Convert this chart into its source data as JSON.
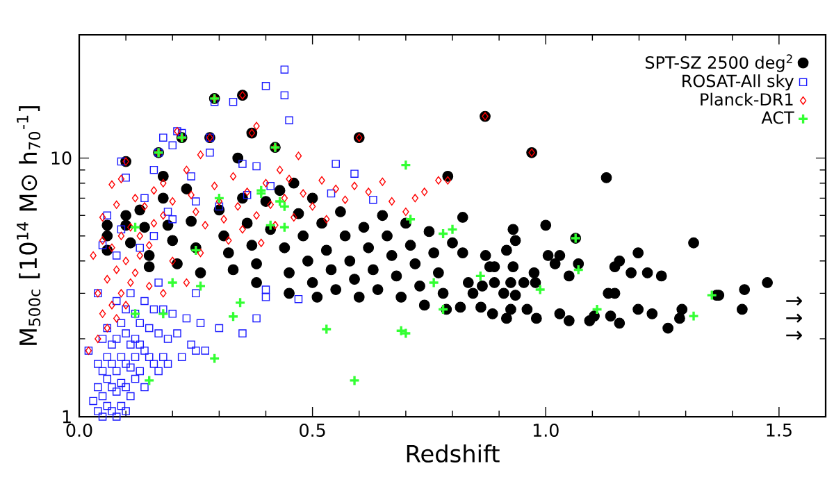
{
  "chart_data": {
    "type": "scatter",
    "xlabel": "Redshift",
    "ylabel": "M$_{500c}$ [10$^{14}$ M⊙ h$_{70}$$^{-1}$]",
    "log": "y",
    "xlim": [
      0,
      1.6
    ],
    "ylim": [
      1,
      30
    ],
    "xticks": [
      {
        "value": 0,
        "label": "0.0"
      },
      {
        "value": 0.5,
        "label": "0.5"
      },
      {
        "value": 1,
        "label": "1.0"
      },
      {
        "value": 1.5,
        "label": "1.5"
      }
    ],
    "yticks": [
      1,
      10
    ],
    "legend": "top right",
    "grid": false,
    "annotations": [
      "→",
      "→",
      "→"
    ],
    "series": [
      {
        "name": "SPT-SZ 2500 deg$^{2}$",
        "color": "#000000",
        "marker": "circle",
        "x": [
          0.06,
          0.06,
          0.06,
          0.1,
          0.1,
          0.1,
          0.11,
          0.13,
          0.14,
          0.15,
          0.15,
          0.17,
          0.18,
          0.18,
          0.19,
          0.2,
          0.21,
          0.22,
          0.23,
          0.24,
          0.25,
          0.26,
          0.28,
          0.29,
          0.3,
          0.31,
          0.32,
          0.33,
          0.34,
          0.35,
          0.35,
          0.36,
          0.37,
          0.38,
          0.38,
          0.4,
          0.41,
          0.42,
          0.43,
          0.44,
          0.45,
          0.45,
          0.46,
          0.47,
          0.48,
          0.49,
          0.5,
          0.5,
          0.51,
          0.52,
          0.53,
          0.54,
          0.55,
          0.56,
          0.57,
          0.58,
          0.59,
          0.6,
          0.6,
          0.61,
          0.62,
          0.63,
          0.64,
          0.65,
          0.66,
          0.67,
          0.68,
          0.69,
          0.7,
          0.71,
          0.72,
          0.73,
          0.74,
          0.75,
          0.76,
          0.77,
          0.78,
          0.79,
          0.8,
          0.87,
          0.97,
          0.37,
          0.822,
          1.0,
          0.93,
          0.935,
          1.064,
          1.317,
          0.822,
          0.871,
          0.916,
          1.005,
          1.03,
          1.02,
          1.07,
          1.198,
          1.158,
          1.148,
          1.183,
          1.218,
          1.248,
          1.05,
          0.975,
          0.88,
          0.89,
          0.93,
          0.834,
          0.864,
          0.89,
          0.925,
          0.953,
          0.978,
          0.844,
          0.91,
          0.935,
          1.134,
          1.148,
          1.371,
          1.426,
          1.475,
          1.421,
          1.366,
          1.292,
          1.198,
          1.228,
          1.139,
          1.104,
          1.094,
          1.158,
          1.262,
          1.287,
          1.05,
          1.03,
          0.98,
          0.96,
          0.925,
          0.886,
          0.861,
          0.817,
          0.787,
          0.916,
          1.13
        ],
        "values": [
          5.5,
          5.0,
          4.4,
          9.7,
          6.0,
          5.5,
          4.7,
          6.3,
          5.4,
          4.2,
          3.8,
          10.5,
          8.5,
          7.0,
          5.5,
          4.8,
          3.9,
          12.0,
          7.6,
          5.7,
          4.5,
          3.6,
          12.0,
          17.0,
          6.3,
          5.0,
          4.3,
          3.7,
          10.0,
          17.5,
          7.0,
          5.6,
          4.6,
          3.9,
          3.3,
          6.8,
          5.3,
          11.0,
          7.5,
          4.5,
          3.6,
          3.0,
          8.0,
          6.1,
          5.0,
          4.0,
          3.3,
          7.0,
          2.9,
          5.6,
          4.4,
          3.7,
          3.1,
          6.2,
          5.0,
          4.0,
          3.4,
          12.0,
          2.9,
          5.4,
          4.5,
          3.7,
          3.1,
          6.0,
          5.0,
          4.2,
          3.5,
          2.9,
          5.6,
          4.6,
          3.9,
          3.2,
          2.7,
          5.2,
          4.3,
          3.6,
          3.0,
          8.5,
          4.7,
          14.5,
          10.5,
          12.5,
          5.9,
          5.5,
          5.3,
          4.8,
          4.9,
          4.7,
          4.3,
          4.2,
          4.4,
          4.2,
          4.2,
          3.9,
          3.9,
          4.3,
          4.0,
          3.8,
          3.6,
          3.6,
          3.5,
          3.5,
          3.6,
          3.8,
          3.8,
          3.8,
          3.3,
          3.2,
          3.3,
          3.3,
          3.3,
          3.3,
          3.0,
          3.0,
          2.95,
          3.0,
          3.0,
          2.95,
          3.1,
          3.3,
          2.6,
          2.95,
          2.6,
          2.6,
          2.5,
          2.45,
          2.45,
          2.35,
          2.3,
          2.2,
          2.4,
          2.35,
          2.5,
          2.4,
          2.6,
          2.6,
          2.5,
          2.65,
          2.65,
          2.6,
          2.4,
          8.4
        ]
      },
      {
        "name": "ROSAT-All sky",
        "color": "#1a1aff",
        "marker": "square",
        "x": [
          0.02,
          0.03,
          0.04,
          0.05,
          0.06,
          0.07,
          0.08,
          0.09,
          0.1,
          0.04,
          0.05,
          0.06,
          0.07,
          0.08,
          0.09,
          0.1,
          0.11,
          0.12,
          0.04,
          0.05,
          0.06,
          0.07,
          0.08,
          0.09,
          0.1,
          0.11,
          0.12,
          0.13,
          0.14,
          0.05,
          0.06,
          0.07,
          0.08,
          0.09,
          0.1,
          0.11,
          0.12,
          0.13,
          0.14,
          0.15,
          0.16,
          0.17,
          0.18,
          0.19,
          0.22,
          0.25,
          0.1,
          0.12,
          0.13,
          0.15,
          0.17,
          0.19,
          0.21,
          0.24,
          0.27,
          0.08,
          0.11,
          0.14,
          0.16,
          0.18,
          0.2,
          0.23,
          0.26,
          0.3,
          0.35,
          0.38,
          0.4,
          0.47,
          0.4,
          0.17,
          0.25,
          0.04,
          0.05,
          0.08,
          0.13,
          0.16,
          0.2,
          0.25,
          0.3,
          0.06,
          0.09,
          0.14,
          0.19,
          0.41,
          0.36,
          0.44,
          0.44,
          0.4,
          0.33,
          0.29,
          0.45,
          0.21,
          0.22,
          0.18,
          0.2,
          0.28,
          0.17,
          0.28,
          0.09,
          0.16,
          0.38,
          0.35,
          0.55,
          0.59,
          0.1,
          0.24,
          0.54,
          0.63
        ],
        "values": [
          1.8,
          1.15,
          1.05,
          1.0,
          1.1,
          1.05,
          1.0,
          1.1,
          1.05,
          1.3,
          1.2,
          1.4,
          1.3,
          1.25,
          1.35,
          1.3,
          1.2,
          1.4,
          1.6,
          1.5,
          1.7,
          1.6,
          1.5,
          1.7,
          1.6,
          1.55,
          1.7,
          1.5,
          1.3,
          2.0,
          2.2,
          1.9,
          2.0,
          2.3,
          2.1,
          1.9,
          2.0,
          1.9,
          1.8,
          1.7,
          1.6,
          1.5,
          1.7,
          1.6,
          1.7,
          1.8,
          2.6,
          2.5,
          2.3,
          2.2,
          2.1,
          2.0,
          2.1,
          1.9,
          1.8,
          2.8,
          3.0,
          2.8,
          2.6,
          2.6,
          2.5,
          2.4,
          2.3,
          2.2,
          2.1,
          2.4,
          2.9,
          2.85,
          3.1,
          3.3,
          3.0,
          3.0,
          4.6,
          4.2,
          4.5,
          5.0,
          5.8,
          6.8,
          6.5,
          6.0,
          5.3,
          7.0,
          6.2,
          7.8,
          7.2,
          22,
          17.5,
          19,
          16.5,
          16.5,
          14,
          12.7,
          12.5,
          12,
          11.2,
          12,
          10.5,
          10.5,
          9.7,
          9,
          9.3,
          9.5,
          9.5,
          8.7,
          8.4,
          8.5,
          7.3,
          6.9
        ]
      },
      {
        "name": "Planck-DR1",
        "color": "#ff0000",
        "marker": "diamond",
        "x": [
          0.02,
          0.04,
          0.05,
          0.06,
          0.07,
          0.08,
          0.09,
          0.1,
          0.11,
          0.04,
          0.06,
          0.08,
          0.1,
          0.12,
          0.13,
          0.03,
          0.05,
          0.07,
          0.09,
          0.11,
          0.13,
          0.15,
          0.16,
          0.18,
          0.05,
          0.08,
          0.09,
          0.07,
          0.1,
          0.12,
          0.14,
          0.17,
          0.16,
          0.18,
          0.2,
          0.21,
          0.22,
          0.23,
          0.24,
          0.25,
          0.26,
          0.27,
          0.28,
          0.29,
          0.29,
          0.3,
          0.31,
          0.32,
          0.33,
          0.34,
          0.35,
          0.35,
          0.36,
          0.37,
          0.38,
          0.38,
          0.39,
          0.4,
          0.41,
          0.42,
          0.42,
          0.43,
          0.44,
          0.45,
          0.46,
          0.47,
          0.48,
          0.5,
          0.52,
          0.53,
          0.55,
          0.57,
          0.59,
          0.6,
          0.62,
          0.65,
          0.67,
          0.7,
          0.72,
          0.74,
          0.77,
          0.79,
          0.87,
          0.97,
          0.2,
          0.23,
          0.26,
          0.15,
          0.18
        ],
        "values": [
          1.8,
          2.0,
          2.5,
          2.2,
          2.7,
          2.4,
          3.0,
          2.7,
          3.3,
          3.0,
          3.4,
          3.7,
          4.0,
          3.6,
          4.2,
          4.2,
          4.8,
          4.5,
          5.0,
          5.4,
          5.0,
          4.6,
          5.6,
          6.0,
          5.9,
          6.6,
          8.3,
          7.9,
          9.7,
          7.0,
          6.5,
          10.5,
          7.5,
          8.0,
          6.8,
          12.7,
          12.0,
          9.0,
          7.2,
          6.2,
          10.3,
          5.5,
          12.0,
          17.0,
          7.8,
          6.8,
          5.8,
          4.8,
          8.5,
          6.5,
          17.5,
          5.3,
          7.4,
          12.5,
          13.3,
          6.0,
          4.7,
          8.0,
          6.6,
          11.0,
          5.5,
          9.0,
          7.0,
          8.3,
          5.9,
          10.2,
          7.3,
          6.5,
          8.2,
          5.8,
          7.6,
          6.9,
          7.8,
          12.0,
          7.4,
          8.1,
          6.8,
          6.2,
          7.0,
          7.4,
          8.2,
          8.2,
          14.5,
          10.5,
          4.0,
          3.3,
          4.3,
          3.2,
          3.0
        ]
      },
      {
        "name": "ACT",
        "color": "#33ff33",
        "marker": "cross",
        "x": [
          0.29,
          0.22,
          0.17,
          0.42,
          0.12,
          0.3,
          0.39,
          0.44,
          0.25,
          0.2,
          0.26,
          0.15,
          0.29,
          0.53,
          0.59,
          0.33,
          0.345,
          0.12,
          0.18,
          0.7,
          0.69,
          0.7,
          0.41,
          0.44,
          0.39,
          0.43,
          0.71,
          0.78,
          0.8,
          1.064,
          1.07,
          0.86,
          0.76,
          0.78,
          1.11,
          1.317,
          1.356,
          0.988
        ],
        "values": [
          17,
          12,
          10.5,
          11,
          5.4,
          7.0,
          7.3,
          6.5,
          4.4,
          3.3,
          3.2,
          1.38,
          1.68,
          2.18,
          1.38,
          2.44,
          2.76,
          2.5,
          2.5,
          9.4,
          2.15,
          2.1,
          5.5,
          5.4,
          7.5,
          6.8,
          5.8,
          5.1,
          5.3,
          4.9,
          3.7,
          3.5,
          3.3,
          2.6,
          2.6,
          2.45,
          2.95,
          3.1
        ]
      }
    ]
  }
}
